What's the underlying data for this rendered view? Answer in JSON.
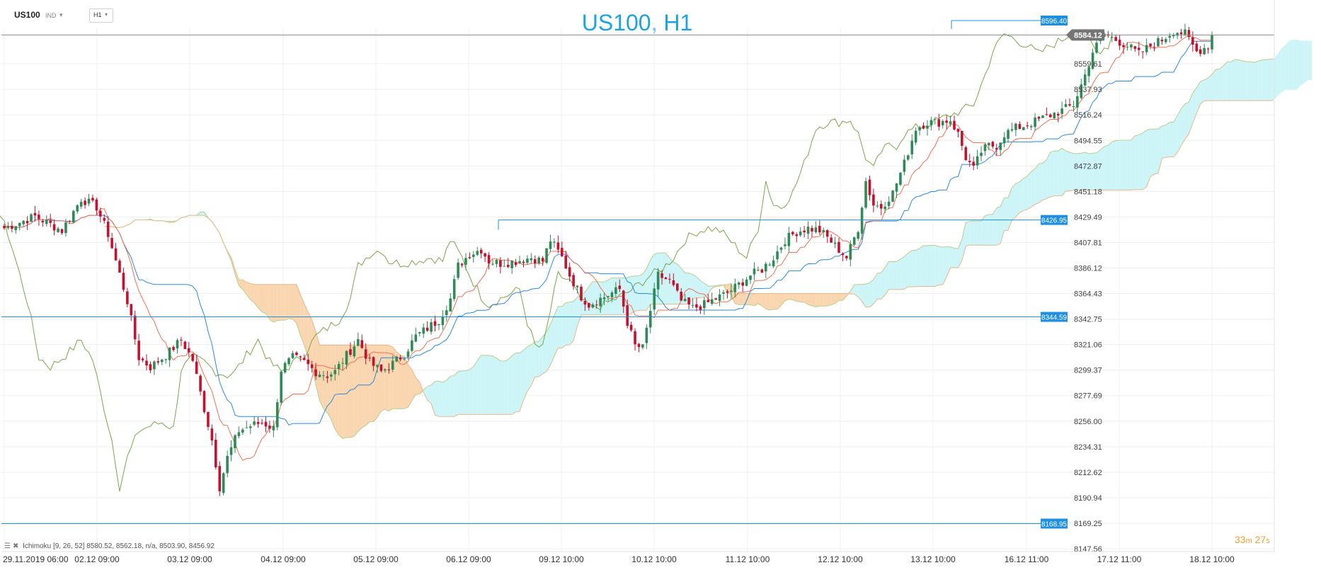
{
  "toolbar": {
    "symbol": "US100",
    "market": "IND",
    "timeframe": "H1"
  },
  "title": "US100, H1",
  "legend": {
    "indicator": "Ichimoku",
    "params": "[9, 26, 52]",
    "values": "8580.52,  8562.18,  n/a,  8503.90,  8456.92"
  },
  "countdown": {
    "minutes": "33",
    "m_unit": "m",
    "seconds": "27",
    "s_unit": "s"
  },
  "colors": {
    "bull": "#2e8b57",
    "bear": "#c8102e",
    "tenkan": "#f07050",
    "kijun": "#2a8ae0",
    "chikou": "#7aa64a",
    "span_a": "#b9cf8f",
    "span_b": "#e6b98a",
    "cloud_up": "#cdf5f8",
    "cloud_down": "#f9d6b0",
    "hline": "#1f8fe0",
    "price_label": "#757575",
    "accent": "#1ca3e2"
  },
  "chart_data": {
    "type": "candlestick",
    "symbol": "US100",
    "timeframe": "H1",
    "ylim": [
      8147.56,
      8597
    ],
    "y_ticks": [
      "8559.61",
      "8537.93",
      "8516.24",
      "8494.55",
      "8472.87",
      "8451.18",
      "8429.49",
      "8407.81",
      "8386.12",
      "8364.43",
      "8342.75",
      "8321.06",
      "8299.37",
      "8277.69",
      "8256.00",
      "8234.31",
      "8212.62",
      "8190.94",
      "8169.25",
      "8147.56"
    ],
    "x_tick_labels": [
      "29.11.2019  06:00",
      "02.12  09:00",
      "03.12  09:00",
      "04.12  09:00",
      "05.12  09:00",
      "06.12  09:00",
      "09.12  10:00",
      "10.12  10:00",
      "11.12  10:00",
      "12.12  10:00",
      "13.12  10:00",
      "16.12  11:00",
      "17.12  11:00",
      "18.12  10:00"
    ],
    "current_price": "8584.12",
    "horizontal_lines": [
      {
        "label": "8596.40",
        "value": 8596.4
      },
      {
        "label": "8426.95",
        "value": 8426.95
      },
      {
        "label": "8344.59",
        "value": 8344.59
      },
      {
        "label": "8168.95",
        "value": 8168.95
      }
    ],
    "control_points": [
      [
        0,
        8420
      ],
      [
        8,
        8430
      ],
      [
        15,
        8418
      ],
      [
        20,
        8445
      ],
      [
        24,
        8438
      ],
      [
        27,
        8415
      ],
      [
        32,
        8358
      ],
      [
        35,
        8310
      ],
      [
        38,
        8302
      ],
      [
        42,
        8312
      ],
      [
        46,
        8325
      ],
      [
        49,
        8308
      ],
      [
        51,
        8280
      ],
      [
        54,
        8240
      ],
      [
        56,
        8200
      ],
      [
        58,
        8225
      ],
      [
        61,
        8248
      ],
      [
        64,
        8252
      ],
      [
        67,
        8255
      ],
      [
        70,
        8250
      ],
      [
        72,
        8300
      ],
      [
        75,
        8310
      ],
      [
        78,
        8306
      ],
      [
        81,
        8298
      ],
      [
        84,
        8295
      ],
      [
        86,
        8298
      ],
      [
        89,
        8312
      ],
      [
        92,
        8325
      ],
      [
        95,
        8306
      ],
      [
        98,
        8298
      ],
      [
        101,
        8305
      ],
      [
        104,
        8313
      ],
      [
        107,
        8328
      ],
      [
        110,
        8335
      ],
      [
        113,
        8342
      ],
      [
        116,
        8360
      ],
      [
        118,
        8388
      ],
      [
        121,
        8398
      ],
      [
        124,
        8402
      ],
      [
        126,
        8392
      ],
      [
        129,
        8390
      ],
      [
        133,
        8392
      ],
      [
        137,
        8395
      ],
      [
        140,
        8392
      ],
      [
        142,
        8410
      ],
      [
        145,
        8395
      ],
      [
        147,
        8380
      ],
      [
        150,
        8362
      ],
      [
        152,
        8355
      ],
      [
        155,
        8360
      ],
      [
        158,
        8365
      ],
      [
        160,
        8368
      ],
      [
        162,
        8340
      ],
      [
        164,
        8320
      ],
      [
        166,
        8318
      ],
      [
        168,
        8350
      ],
      [
        170,
        8380
      ],
      [
        173,
        8375
      ],
      [
        176,
        8358
      ],
      [
        179,
        8352
      ],
      [
        182,
        8355
      ],
      [
        185,
        8360
      ],
      [
        188,
        8365
      ],
      [
        191,
        8372
      ],
      [
        194,
        8380
      ],
      [
        197,
        8385
      ],
      [
        200,
        8395
      ],
      [
        203,
        8410
      ],
      [
        206,
        8417
      ],
      [
        209,
        8420
      ],
      [
        212,
        8418
      ],
      [
        214,
        8412
      ],
      [
        216,
        8405
      ],
      [
        219,
        8395
      ],
      [
        222,
        8420
      ],
      [
        224,
        8460
      ],
      [
        226,
        8440
      ],
      [
        228,
        8438
      ],
      [
        231,
        8450
      ],
      [
        234,
        8475
      ],
      [
        237,
        8505
      ],
      [
        240,
        8510
      ],
      [
        243,
        8510
      ],
      [
        246,
        8512
      ],
      [
        248,
        8500
      ],
      [
        250,
        8480
      ],
      [
        252,
        8470
      ],
      [
        254,
        8485
      ],
      [
        256,
        8490
      ],
      [
        258,
        8490
      ],
      [
        260,
        8500
      ],
      [
        263,
        8505
      ],
      [
        266,
        8508
      ],
      [
        269,
        8512
      ],
      [
        272,
        8516
      ],
      [
        275,
        8520
      ],
      [
        278,
        8525
      ],
      [
        281,
        8550
      ],
      [
        283,
        8570
      ],
      [
        286,
        8585
      ],
      [
        289,
        8580
      ],
      [
        292,
        8575
      ],
      [
        295,
        8568
      ],
      [
        298,
        8575
      ],
      [
        301,
        8580
      ],
      [
        304,
        8588
      ],
      [
        307,
        8585
      ],
      [
        310,
        8570
      ],
      [
        313,
        8575
      ],
      [
        314,
        8584
      ]
    ],
    "n_bars": 315
  }
}
